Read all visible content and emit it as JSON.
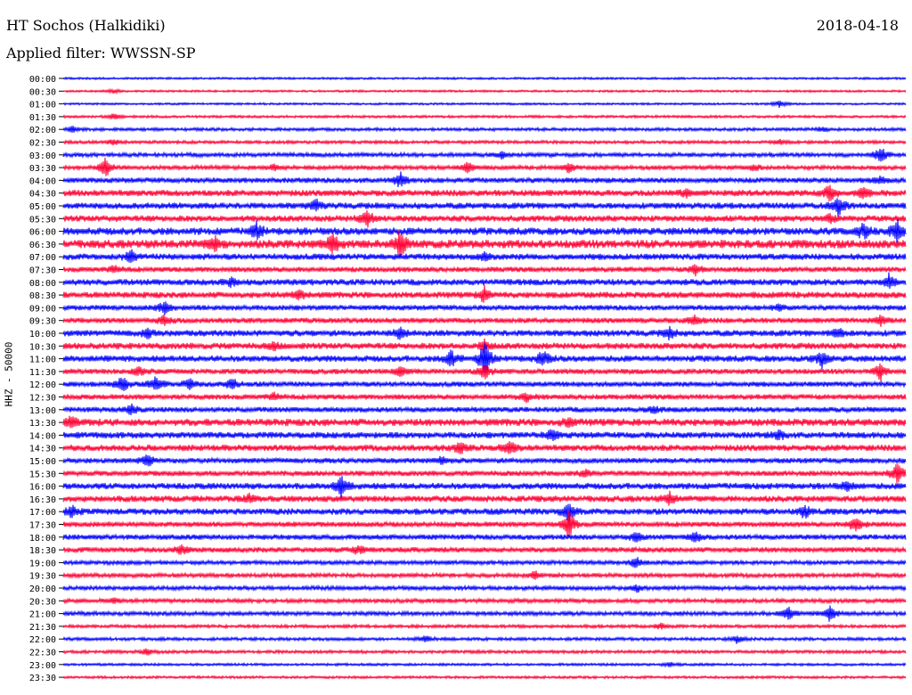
{
  "header": {
    "station": "HT Sochos (Halkidiki)",
    "date": "2018-04-18",
    "filter": "Applied filter: WWSSN-SP",
    "channel": "HHZ - 50000"
  },
  "chart_data": {
    "type": "line",
    "title": "HT Sochos (Halkidiki)",
    "ylabel": "HHZ - 50000",
    "colors": [
      "#0000ff",
      "#ff0033"
    ],
    "traces": [
      {
        "start": "00:00",
        "color": "#0000ff",
        "amplitude": 1,
        "events": []
      },
      {
        "start": "00:30",
        "color": "#ff0033",
        "amplitude": 1,
        "events": [
          {
            "x": 0.06,
            "amp": 2
          }
        ]
      },
      {
        "start": "01:00",
        "color": "#0000ff",
        "amplitude": 1,
        "events": [
          {
            "x": 0.85,
            "amp": 3
          }
        ]
      },
      {
        "start": "01:30",
        "color": "#ff0033",
        "amplitude": 1.2,
        "events": [
          {
            "x": 0.06,
            "amp": 3
          }
        ]
      },
      {
        "start": "02:00",
        "color": "#0000ff",
        "amplitude": 1.5,
        "events": [
          {
            "x": 0.01,
            "amp": 3
          },
          {
            "x": 0.9,
            "amp": 2
          }
        ]
      },
      {
        "start": "02:30",
        "color": "#ff0033",
        "amplitude": 1.5,
        "events": [
          {
            "x": 0.06,
            "amp": 3
          },
          {
            "x": 0.85,
            "amp": 2
          }
        ]
      },
      {
        "start": "03:00",
        "color": "#0000ff",
        "amplitude": 2,
        "events": [
          {
            "x": 0.52,
            "amp": 3
          },
          {
            "x": 0.97,
            "amp": 9
          }
        ]
      },
      {
        "start": "03:30",
        "color": "#ff0033",
        "amplitude": 2,
        "events": [
          {
            "x": 0.05,
            "amp": 9
          },
          {
            "x": 0.25,
            "amp": 3
          },
          {
            "x": 0.48,
            "amp": 6
          },
          {
            "x": 0.6,
            "amp": 5
          },
          {
            "x": 0.82,
            "amp": 3
          }
        ]
      },
      {
        "start": "04:00",
        "color": "#0000ff",
        "amplitude": 2.5,
        "events": [
          {
            "x": 0.4,
            "amp": 7
          },
          {
            "x": 0.97,
            "amp": 3
          }
        ]
      },
      {
        "start": "04:30",
        "color": "#ff0033",
        "amplitude": 3,
        "events": [
          {
            "x": 0.74,
            "amp": 4
          },
          {
            "x": 0.91,
            "amp": 8
          },
          {
            "x": 0.95,
            "amp": 6
          }
        ]
      },
      {
        "start": "05:00",
        "color": "#0000ff",
        "amplitude": 3,
        "events": [
          {
            "x": 0.3,
            "amp": 5
          },
          {
            "x": 0.92,
            "amp": 9
          }
        ]
      },
      {
        "start": "05:30",
        "color": "#ff0033",
        "amplitude": 3,
        "events": [
          {
            "x": 0.36,
            "amp": 9
          },
          {
            "x": 0.91,
            "amp": 4
          }
        ]
      },
      {
        "start": "06:00",
        "color": "#0000ff",
        "amplitude": 3.5,
        "events": [
          {
            "x": 0.23,
            "amp": 8
          },
          {
            "x": 0.95,
            "amp": 8
          },
          {
            "x": 0.99,
            "amp": 10
          }
        ]
      },
      {
        "start": "06:30",
        "color": "#ff0033",
        "amplitude": 4,
        "events": [
          {
            "x": 0.18,
            "amp": 6
          },
          {
            "x": 0.32,
            "amp": 10
          },
          {
            "x": 0.4,
            "amp": 13
          }
        ]
      },
      {
        "start": "07:00",
        "color": "#0000ff",
        "amplitude": 3,
        "events": [
          {
            "x": 0.08,
            "amp": 6
          },
          {
            "x": 0.5,
            "amp": 4
          }
        ]
      },
      {
        "start": "07:30",
        "color": "#ff0033",
        "amplitude": 2.5,
        "events": [
          {
            "x": 0.06,
            "amp": 4
          },
          {
            "x": 0.75,
            "amp": 5
          }
        ]
      },
      {
        "start": "08:00",
        "color": "#0000ff",
        "amplitude": 3,
        "events": [
          {
            "x": 0.2,
            "amp": 4
          },
          {
            "x": 0.98,
            "amp": 8
          }
        ]
      },
      {
        "start": "08:30",
        "color": "#ff0033",
        "amplitude": 3,
        "events": [
          {
            "x": 0.28,
            "amp": 5
          },
          {
            "x": 0.5,
            "amp": 7
          }
        ]
      },
      {
        "start": "09:00",
        "color": "#0000ff",
        "amplitude": 2.5,
        "events": [
          {
            "x": 0.12,
            "amp": 6
          },
          {
            "x": 0.85,
            "amp": 3
          }
        ]
      },
      {
        "start": "09:30",
        "color": "#ff0033",
        "amplitude": 2.5,
        "events": [
          {
            "x": 0.12,
            "amp": 5
          },
          {
            "x": 0.75,
            "amp": 5
          },
          {
            "x": 0.97,
            "amp": 6
          }
        ]
      },
      {
        "start": "10:00",
        "color": "#0000ff",
        "amplitude": 3,
        "events": [
          {
            "x": 0.1,
            "amp": 4
          },
          {
            "x": 0.4,
            "amp": 6
          },
          {
            "x": 0.72,
            "amp": 5
          },
          {
            "x": 0.92,
            "amp": 5
          }
        ]
      },
      {
        "start": "10:30",
        "color": "#ff0033",
        "amplitude": 3,
        "events": [
          {
            "x": 0.25,
            "amp": 4
          },
          {
            "x": 0.5,
            "amp": 5
          }
        ]
      },
      {
        "start": "11:00",
        "color": "#0000ff",
        "amplitude": 3,
        "events": [
          {
            "x": 0.46,
            "amp": 8
          },
          {
            "x": 0.5,
            "amp": 17
          },
          {
            "x": 0.57,
            "amp": 8
          },
          {
            "x": 0.9,
            "amp": 8
          }
        ]
      },
      {
        "start": "11:30",
        "color": "#ff0033",
        "amplitude": 2.5,
        "events": [
          {
            "x": 0.09,
            "amp": 5
          },
          {
            "x": 0.4,
            "amp": 5
          },
          {
            "x": 0.5,
            "amp": 7
          },
          {
            "x": 0.97,
            "amp": 9
          }
        ]
      },
      {
        "start": "12:00",
        "color": "#0000ff",
        "amplitude": 2.5,
        "events": [
          {
            "x": 0.07,
            "amp": 8
          },
          {
            "x": 0.11,
            "amp": 7
          },
          {
            "x": 0.15,
            "amp": 5
          },
          {
            "x": 0.2,
            "amp": 6
          }
        ]
      },
      {
        "start": "12:30",
        "color": "#ff0033",
        "amplitude": 2.5,
        "events": [
          {
            "x": 0.25,
            "amp": 4
          },
          {
            "x": 0.55,
            "amp": 4
          }
        ]
      },
      {
        "start": "13:00",
        "color": "#0000ff",
        "amplitude": 2.5,
        "events": [
          {
            "x": 0.08,
            "amp": 5
          },
          {
            "x": 0.7,
            "amp": 3
          }
        ]
      },
      {
        "start": "13:30",
        "color": "#ff0033",
        "amplitude": 3.5,
        "events": [
          {
            "x": 0.01,
            "amp": 5
          },
          {
            "x": 0.6,
            "amp": 4
          }
        ]
      },
      {
        "start": "14:00",
        "color": "#0000ff",
        "amplitude": 3,
        "events": [
          {
            "x": 0.58,
            "amp": 5
          },
          {
            "x": 0.85,
            "amp": 4
          }
        ]
      },
      {
        "start": "14:30",
        "color": "#ff0033",
        "amplitude": 3,
        "events": [
          {
            "x": 0.47,
            "amp": 6
          },
          {
            "x": 0.53,
            "amp": 7
          }
        ]
      },
      {
        "start": "15:00",
        "color": "#0000ff",
        "amplitude": 2.5,
        "events": [
          {
            "x": 0.1,
            "amp": 6
          },
          {
            "x": 0.45,
            "amp": 4
          }
        ]
      },
      {
        "start": "15:30",
        "color": "#ff0033",
        "amplitude": 2.5,
        "events": [
          {
            "x": 0.62,
            "amp": 3
          },
          {
            "x": 0.99,
            "amp": 11
          }
        ]
      },
      {
        "start": "16:00",
        "color": "#0000ff",
        "amplitude": 3,
        "events": [
          {
            "x": 0.33,
            "amp": 10
          },
          {
            "x": 0.93,
            "amp": 4
          }
        ]
      },
      {
        "start": "16:30",
        "color": "#ff0033",
        "amplitude": 3,
        "events": [
          {
            "x": 0.22,
            "amp": 4
          },
          {
            "x": 0.72,
            "amp": 6
          }
        ]
      },
      {
        "start": "17:00",
        "color": "#0000ff",
        "amplitude": 3,
        "events": [
          {
            "x": 0.01,
            "amp": 6
          },
          {
            "x": 0.6,
            "amp": 9
          },
          {
            "x": 0.88,
            "amp": 7
          }
        ]
      },
      {
        "start": "17:30",
        "color": "#ff0033",
        "amplitude": 2.5,
        "events": [
          {
            "x": 0.6,
            "amp": 14
          },
          {
            "x": 0.94,
            "amp": 8
          }
        ]
      },
      {
        "start": "18:00",
        "color": "#0000ff",
        "amplitude": 2.5,
        "events": [
          {
            "x": 0.68,
            "amp": 6
          },
          {
            "x": 0.75,
            "amp": 5
          }
        ]
      },
      {
        "start": "18:30",
        "color": "#ff0033",
        "amplitude": 2.5,
        "events": [
          {
            "x": 0.14,
            "amp": 4
          },
          {
            "x": 0.35,
            "amp": 4
          }
        ]
      },
      {
        "start": "19:00",
        "color": "#0000ff",
        "amplitude": 2,
        "events": [
          {
            "x": 0.68,
            "amp": 5
          }
        ]
      },
      {
        "start": "19:30",
        "color": "#ff0033",
        "amplitude": 2,
        "events": [
          {
            "x": 0.56,
            "amp": 4
          }
        ]
      },
      {
        "start": "20:00",
        "color": "#0000ff",
        "amplitude": 2,
        "events": [
          {
            "x": 0.68,
            "amp": 4
          }
        ]
      },
      {
        "start": "20:30",
        "color": "#ff0033",
        "amplitude": 2,
        "events": [
          {
            "x": 0.06,
            "amp": 3
          }
        ]
      },
      {
        "start": "21:00",
        "color": "#0000ff",
        "amplitude": 2,
        "events": [
          {
            "x": 0.86,
            "amp": 7
          },
          {
            "x": 0.91,
            "amp": 7
          }
        ]
      },
      {
        "start": "21:30",
        "color": "#ff0033",
        "amplitude": 1.5,
        "events": [
          {
            "x": 0.71,
            "amp": 3
          }
        ]
      },
      {
        "start": "22:00",
        "color": "#0000ff",
        "amplitude": 1.5,
        "events": [
          {
            "x": 0.43,
            "amp": 3
          },
          {
            "x": 0.8,
            "amp": 4
          }
        ]
      },
      {
        "start": "22:30",
        "color": "#ff0033",
        "amplitude": 1.5,
        "events": [
          {
            "x": 0.1,
            "amp": 3
          }
        ]
      },
      {
        "start": "23:00",
        "color": "#0000ff",
        "amplitude": 1.2,
        "events": [
          {
            "x": 0.72,
            "amp": 2
          }
        ]
      },
      {
        "start": "23:30",
        "color": "#ff0033",
        "amplitude": 1.2,
        "events": []
      }
    ]
  }
}
